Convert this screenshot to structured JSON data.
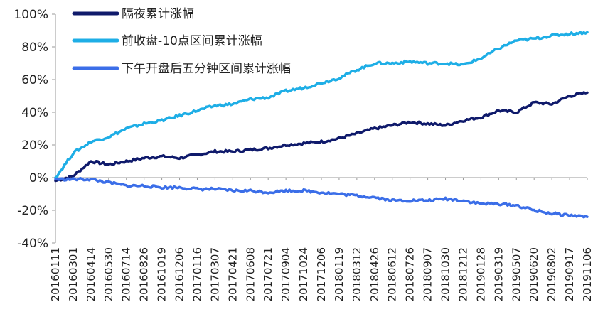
{
  "chart_data": {
    "type": "line",
    "title": "",
    "xlabel": "",
    "ylabel": "",
    "ylim": [
      -40,
      100
    ],
    "yticks": [
      -40,
      -20,
      0,
      20,
      40,
      60,
      80,
      100
    ],
    "ytick_labels": [
      "-40%",
      "-20%",
      "0%",
      "20%",
      "40%",
      "60%",
      "80%",
      "100%"
    ],
    "grid": false,
    "legend_position": "top-left",
    "x": [
      "20160111",
      "20160301",
      "20160414",
      "20160530",
      "20160714",
      "20160826",
      "20161019",
      "20161206",
      "20170116",
      "20170307",
      "20170421",
      "20170608",
      "20170721",
      "20170904",
      "20171024",
      "20171206",
      "20180119",
      "20180312",
      "20180426",
      "20180612",
      "20180726",
      "20180907",
      "20181030",
      "20181212",
      "20190128",
      "20190319",
      "20190507",
      "20190620",
      "20190802",
      "20190917",
      "20191106"
    ],
    "series": [
      {
        "name": "隔夜累计涨幅",
        "color": "#0f1a6b",
        "values": [
          -2,
          1,
          10,
          8,
          10,
          12,
          13,
          12,
          14,
          16,
          16,
          17,
          18,
          20,
          21,
          22,
          24,
          27,
          30,
          32,
          34,
          33,
          32,
          35,
          37,
          41,
          40,
          46,
          45,
          50,
          52
        ]
      },
      {
        "name": "前收盘-10点区间累计涨幅",
        "color": "#1eaee6",
        "values": [
          0,
          15,
          22,
          25,
          30,
          33,
          35,
          38,
          41,
          44,
          45,
          48,
          49,
          53,
          55,
          58,
          61,
          66,
          70,
          70,
          71,
          70,
          70,
          69,
          73,
          79,
          84,
          85,
          87,
          88,
          89
        ]
      },
      {
        "name": "下午开盘后五分钟区间累计涨幅",
        "color": "#3b6ee8",
        "values": [
          -1,
          -1,
          -1,
          -3,
          -5,
          -5,
          -6,
          -6,
          -7,
          -7,
          -8,
          -8,
          -9,
          -8,
          -8,
          -9,
          -10,
          -11,
          -12,
          -14,
          -14,
          -14,
          -13,
          -14,
          -16,
          -16,
          -17,
          -20,
          -22,
          -23,
          -24
        ]
      }
    ]
  }
}
